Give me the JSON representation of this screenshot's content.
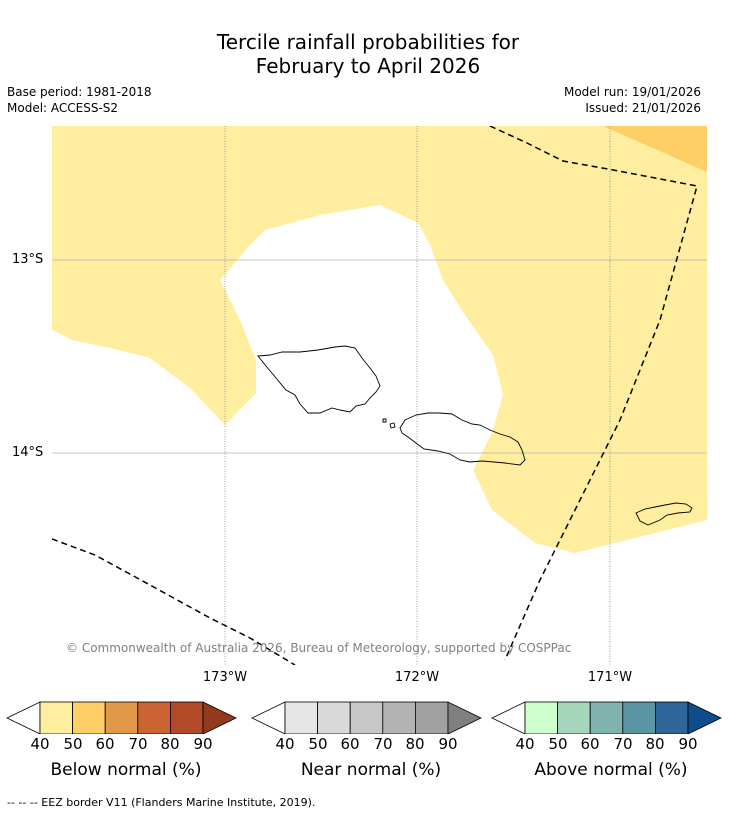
{
  "title_line1": "Tercile rainfall probabilities for",
  "title_line2": "February to April 2026",
  "base_period": "Base period: 1981-2018",
  "model": "Model: ACCESS-S2",
  "model_run": "Model run: 19/01/2026",
  "issued": "Issued: 21/01/2026",
  "lat_labels": [
    "13°S",
    "14°S"
  ],
  "lon_labels": [
    "173°W",
    "172°W",
    "171°W"
  ],
  "copyright": "© Commonwealth of Australia 2026, Bureau of Meteorology, supported by COSPPac",
  "legends": [
    {
      "caption": "Below normal (%)",
      "ticks": [
        "40",
        "50",
        "60",
        "70",
        "80",
        "90"
      ],
      "colors": [
        "#ffeea0",
        "#fecf66",
        "#e19848",
        "#cc6333",
        "#b24a27",
        "#933a1d"
      ]
    },
    {
      "caption": "Near normal (%)",
      "ticks": [
        "40",
        "50",
        "60",
        "70",
        "80",
        "90"
      ],
      "colors": [
        "#e6e6e6",
        "#d9d9d9",
        "#c7c7c7",
        "#b3b3b3",
        "#a1a1a1",
        "#808080"
      ]
    },
    {
      "caption": "Above normal (%)",
      "ticks": [
        "40",
        "50",
        "60",
        "70",
        "80",
        "90"
      ],
      "colors": [
        "#ccffcc",
        "#a5d6bb",
        "#80b3ae",
        "#5b94a2",
        "#30659a",
        "#0f4c8a"
      ]
    }
  ],
  "footer": "--  --  -- EEZ border V11 (Flanders Marine Institute, 2019)."
}
